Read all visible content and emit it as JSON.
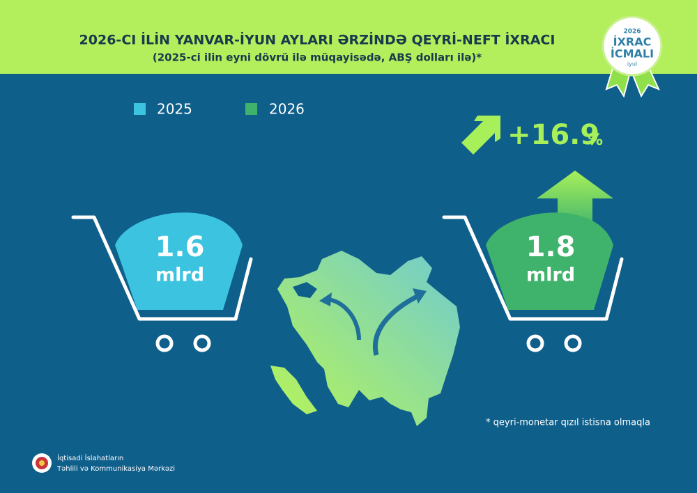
{
  "header": {
    "title": "2026-CI İLİN YANVAR-İYUN AYLARI ƏRZİNDƏ QEYRİ-NEFT İXRACI",
    "subtitle": "(2025-ci ilin eyni dövrü ilə müqayisədə, ABŞ dolları ilə)*"
  },
  "badge": {
    "year": "2026",
    "line1": "İXRAC",
    "line2": "İCMALI",
    "month": "iyul"
  },
  "legend": [
    {
      "label": "2025",
      "color": "#3cc3e0"
    },
    {
      "label": "2026",
      "color": "#3fb36c"
    }
  ],
  "change": {
    "value": "+16.9",
    "unit": "%"
  },
  "carts": [
    {
      "value": "1.6",
      "unit": "mlrd",
      "color": "#3cc3e0"
    },
    {
      "value": "1.8",
      "unit": "mlrd",
      "color": "#3fb36c"
    }
  ],
  "footnote": "* qeyri-monetar qızıl istisna olmaqla",
  "organization": [
    "İqtisadi İslahatların",
    "Təhlili və Kommunikasiya Mərkəzi"
  ]
}
